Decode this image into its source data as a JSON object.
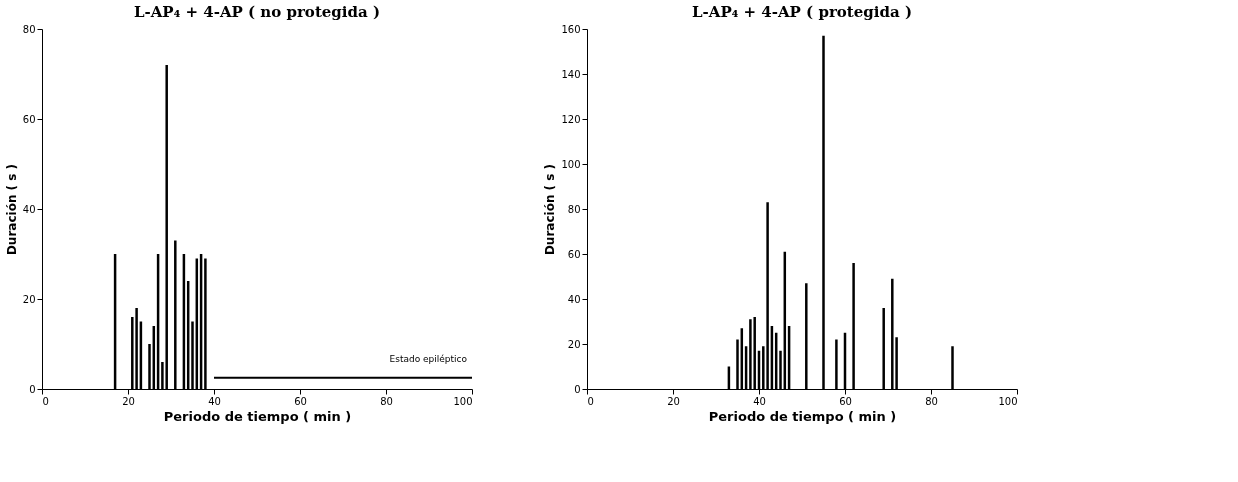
{
  "chart_data": [
    {
      "type": "bar",
      "title": "L-AP₄  +  4-AP  ( no protegida )",
      "xlabel": "Periodo de tiempo ( min )",
      "ylabel": "Duración ( s )",
      "x": [
        17,
        21,
        22,
        23,
        25,
        26,
        27,
        28,
        29,
        31,
        33,
        34,
        35,
        36,
        37,
        38
      ],
      "series": [
        {
          "color": "#000000",
          "values": [
            30,
            16,
            18,
            15,
            10,
            14,
            30,
            6,
            72,
            33,
            30,
            24,
            15,
            29,
            30,
            29
          ]
        },
        {
          "type": "line",
          "color": "#000000",
          "x": [
            40,
            100
          ],
          "values": [
            2.5,
            2.5
          ]
        }
      ],
      "annotations": [
        "Estado epiléptico"
      ],
      "xlim": [
        0,
        100
      ],
      "xticks": [
        0,
        20,
        40,
        60,
        80,
        100
      ],
      "ylim": [
        0,
        80
      ],
      "yticks": [
        0,
        20,
        40,
        60,
        80
      ],
      "grid": false
    },
    {
      "type": "bar",
      "title": "L-AP₄  +  4-AP  ( protegida )",
      "xlabel": "Periodo de tiempo ( min )",
      "ylabel": "Duración ( s )",
      "x": [
        33,
        35,
        36,
        37,
        38,
        39,
        40,
        41,
        42,
        43,
        44,
        45,
        46,
        47,
        51,
        55,
        58,
        60,
        62,
        69,
        71,
        72,
        85
      ],
      "series": [
        {
          "color": "#000000",
          "values": [
            10,
            22,
            27,
            19,
            31,
            32,
            17,
            19,
            83,
            28,
            25,
            17,
            61,
            28,
            47,
            157,
            22,
            25,
            56,
            36,
            49,
            23,
            19
          ]
        }
      ],
      "xlim": [
        0,
        100
      ],
      "xticks": [
        0,
        20,
        40,
        60,
        80,
        100
      ],
      "ylim": [
        0,
        160
      ],
      "yticks": [
        0,
        20,
        40,
        60,
        80,
        100,
        120,
        140,
        160
      ],
      "grid": false
    }
  ]
}
